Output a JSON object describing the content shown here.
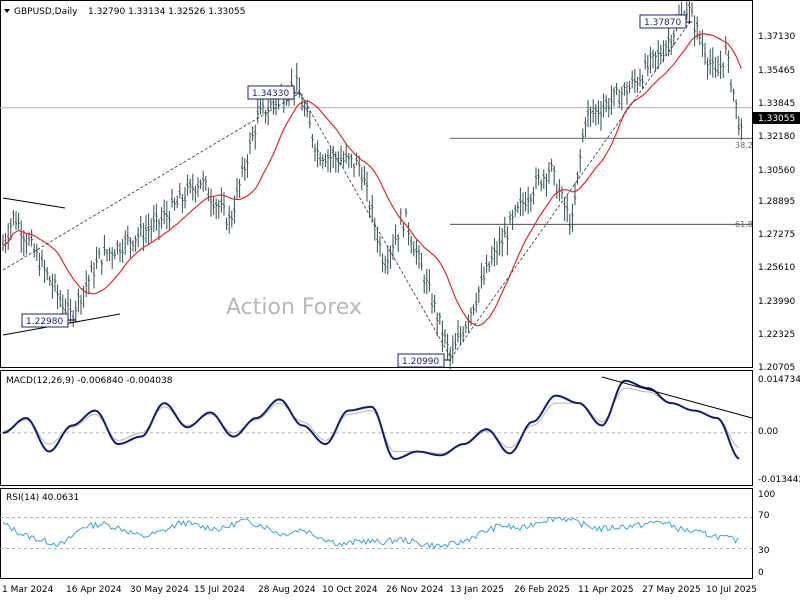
{
  "header": {
    "symbol": "GBPUSD,Daily",
    "ohlc": "1.32790 1.33134 1.32526 1.33055"
  },
  "watermark": "Action Forex",
  "colors": {
    "bars": "#2f4f4f",
    "ma": "#e8262a",
    "macd": "#0b1e7a",
    "signal": "#b4b4b4",
    "rsi": "#3aa6d9",
    "box_border": "#1a237e"
  },
  "chart_data": [
    {
      "type": "line",
      "subtype": "ohlc-bars",
      "title": "GBPUSD,Daily",
      "ylim": [
        1.207,
        1.3795
      ],
      "y_ticks": [
        "1.37130",
        "1.35465",
        "1.33845",
        "1.33055",
        "1.32180",
        "1.30560",
        "1.28895",
        "1.27275",
        "1.25610",
        "1.23990",
        "1.22325",
        "1.20705"
      ],
      "x_ticks": [
        "1 Mar 2024",
        "16 Apr 2024",
        "30 May 2024",
        "15 Jul 2024",
        "28 Aug 2024",
        "10 Oct 2024",
        "26 Nov 2024",
        "13 Jan 2025",
        "26 Feb 2025",
        "11 Apr 2025",
        "27 May 2025",
        "10 Jul 2025"
      ],
      "current_price": "1.33055",
      "annotations": [
        {
          "label": "1.22980",
          "value": 1.2298
        },
        {
          "label": "1.34330",
          "value": 1.3433
        },
        {
          "label": "1.20990",
          "value": 1.2099
        },
        {
          "label": "1.37870",
          "value": 1.3787
        }
      ],
      "fib_levels": [
        {
          "label": "38.2",
          "value": 1.316
        },
        {
          "label": "61.8",
          "value": 1.275
        }
      ],
      "anchors": [
        {
          "x": "1 Mar 2024",
          "y": 1.262
        },
        {
          "x": "16 Apr 2024",
          "y": 1.248
        },
        {
          "x": "30 May 2024",
          "y": 1.274
        },
        {
          "x": "15 Jul 2024",
          "y": 1.295
        },
        {
          "x": "28 Aug 2024",
          "y": 1.325
        },
        {
          "x": "10 Oct 2024",
          "y": 1.308
        },
        {
          "x": "26 Nov 2024",
          "y": 1.26
        },
        {
          "x": "13 Jan 2025",
          "y": 1.215
        },
        {
          "x": "26 Feb 2025",
          "y": 1.264
        },
        {
          "x": "11 Apr 2025",
          "y": 1.315
        },
        {
          "x": "27 May 2025",
          "y": 1.345
        },
        {
          "x": "10 Jul 2025",
          "y": 1.355
        }
      ],
      "series": [
        {
          "name": "MA",
          "values": []
        }
      ]
    },
    {
      "type": "line",
      "title": "MACD(12,26,9) -0.006840 -0.004038",
      "ylim": [
        -0.01344,
        0.01473
      ],
      "y_ticks": [
        "0.014734",
        "0.00",
        "-0.013442"
      ],
      "series": [
        {
          "name": "MACD",
          "values": [
            0.0,
            0.004,
            -0.005,
            0.002,
            0.006,
            -0.003,
            -0.001,
            0.008,
            0.0015,
            0.0055,
            -0.001,
            0.004,
            0.009,
            0.002,
            -0.003,
            0.006,
            0.007,
            -0.007,
            -0.005,
            -0.006,
            -0.003,
            0.001,
            -0.0055,
            0.003,
            0.01,
            0.008,
            0.002,
            0.014,
            0.012,
            0.008,
            0.006,
            0.004,
            -0.007
          ]
        },
        {
          "name": "Signal",
          "values": [
            0.0005,
            0.0035,
            -0.003,
            0.0015,
            0.005,
            -0.002,
            0.0,
            0.007,
            0.002,
            0.005,
            0.0,
            0.0035,
            0.008,
            0.003,
            -0.002,
            0.005,
            0.006,
            -0.005,
            -0.005,
            -0.0055,
            -0.003,
            0.0005,
            -0.004,
            0.002,
            0.008,
            0.008,
            0.003,
            0.012,
            0.011,
            0.008,
            0.006,
            0.004,
            -0.004
          ]
        }
      ],
      "trendline": [
        {
          "x": "11 Apr 2025",
          "y": 0.015
        },
        {
          "x": "10 Jul 2025",
          "y": 0.004
        }
      ]
    },
    {
      "type": "line",
      "title": "RSI(14) 40.0631",
      "ylim": [
        0,
        100
      ],
      "y_ticks": [
        "100",
        "70",
        "30",
        "0"
      ],
      "series": [
        {
          "name": "RSI",
          "values": [
            62,
            48,
            40,
            35,
            58,
            62,
            55,
            45,
            52,
            64,
            58,
            55,
            66,
            60,
            48,
            55,
            44,
            35,
            40,
            38,
            42,
            36,
            33,
            38,
            50,
            60,
            55,
            66,
            70,
            62,
            55,
            58,
            60,
            65,
            55,
            50,
            45,
            40
          ]
        }
      ]
    }
  ]
}
